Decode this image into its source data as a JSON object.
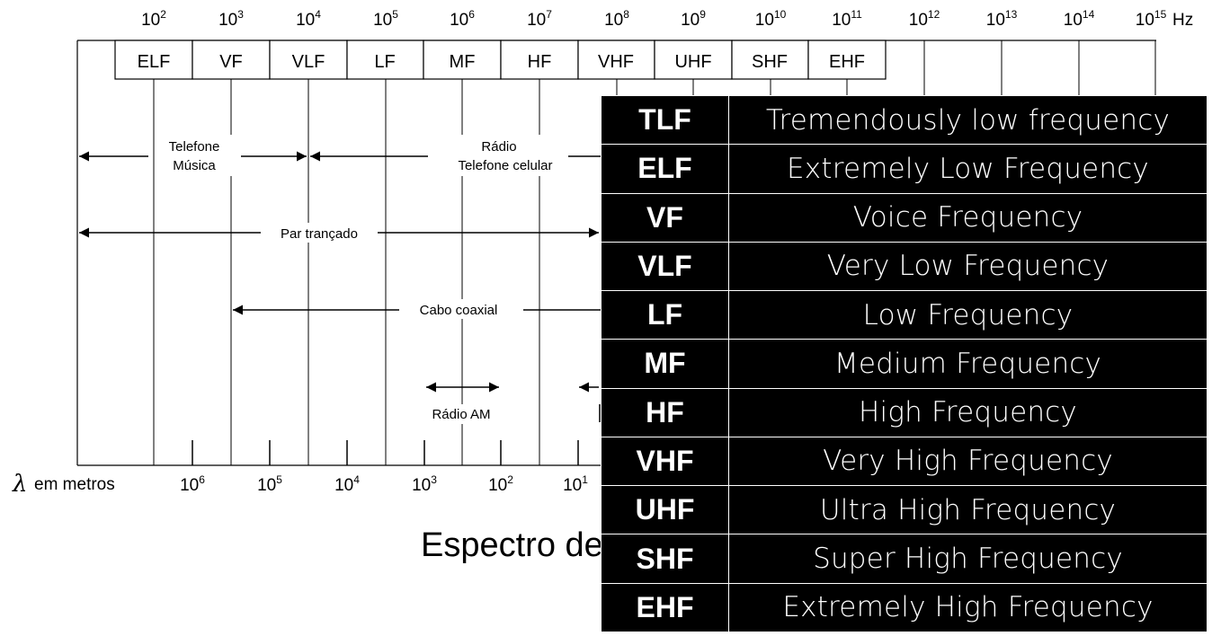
{
  "frequency_axis": {
    "ticks": [
      {
        "base": "10",
        "exp": "2"
      },
      {
        "base": "10",
        "exp": "3"
      },
      {
        "base": "10",
        "exp": "4"
      },
      {
        "base": "10",
        "exp": "5"
      },
      {
        "base": "10",
        "exp": "6"
      },
      {
        "base": "10",
        "exp": "7"
      },
      {
        "base": "10",
        "exp": "8"
      },
      {
        "base": "10",
        "exp": "9"
      },
      {
        "base": "10",
        "exp": "10"
      },
      {
        "base": "10",
        "exp": "11"
      },
      {
        "base": "10",
        "exp": "12"
      },
      {
        "base": "10",
        "exp": "13"
      },
      {
        "base": "10",
        "exp": "14"
      },
      {
        "base": "10",
        "exp": "15"
      }
    ],
    "unit": "Hz"
  },
  "bands": [
    "ELF",
    "VF",
    "VLF",
    "LF",
    "MF",
    "HF",
    "VHF",
    "UHF",
    "SHF",
    "EHF"
  ],
  "media": {
    "telefone": [
      "Telefone",
      "Música"
    ],
    "radio": [
      "Rádio",
      "Telefone celular"
    ],
    "par": "Par trançado",
    "coax": "Cabo coaxial",
    "am": "Rádio AM"
  },
  "wavelength_axis": {
    "symbol": "λ",
    "label": "em metros",
    "ticks": [
      {
        "base": "10",
        "exp": "6"
      },
      {
        "base": "10",
        "exp": "5"
      },
      {
        "base": "10",
        "exp": "4"
      },
      {
        "base": "10",
        "exp": "3"
      },
      {
        "base": "10",
        "exp": "2"
      },
      {
        "base": "10",
        "exp": "1"
      }
    ]
  },
  "title_fragment": "Espectro de",
  "legend": [
    {
      "abbr": "TLF",
      "full": "Tremendously low frequency"
    },
    {
      "abbr": "ELF",
      "full": "Extremely Low Frequency"
    },
    {
      "abbr": "VF",
      "full": "Voice Frequency"
    },
    {
      "abbr": "VLF",
      "full": "Very Low Frequency"
    },
    {
      "abbr": "LF",
      "full": "Low Frequency"
    },
    {
      "abbr": "MF",
      "full": "Medium Frequency"
    },
    {
      "abbr": "HF",
      "full": "High Frequency"
    },
    {
      "abbr": "VHF",
      "full": "Very High Frequency"
    },
    {
      "abbr": "UHF",
      "full": "Ultra High Frequency"
    },
    {
      "abbr": "SHF",
      "full": "Super High Frequency"
    },
    {
      "abbr": "EHF",
      "full": "Extremely High Frequency"
    }
  ]
}
